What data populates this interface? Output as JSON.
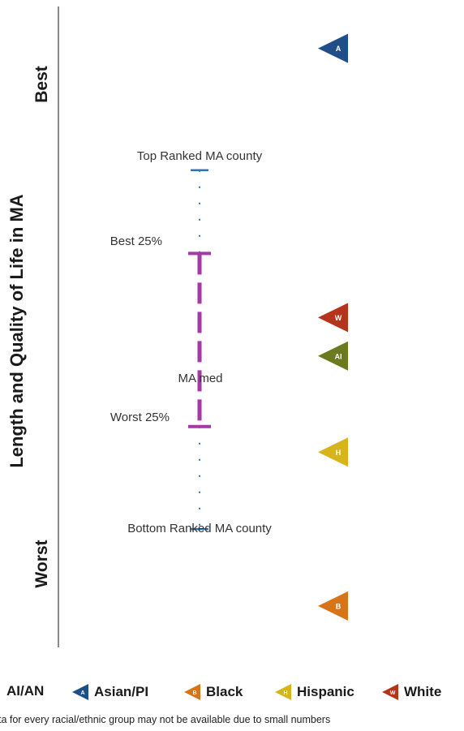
{
  "chart_data": {
    "type": "scatter",
    "title": "",
    "ylabel": "Length and Quality of Life in MA",
    "y_scale_ends": {
      "top": "Best",
      "bottom": "Worst"
    },
    "reference_labels": {
      "top_ranked": "Top Ranked MA county",
      "best_25": "Best 25%",
      "median": "MA med",
      "worst_25": "Worst 25%",
      "bottom_ranked": "Bottom Ranked MA county"
    },
    "reference_levels": {
      "top_ranked": 0.77,
      "best_25": 0.64,
      "worst_25": 0.37,
      "bottom_ranked": 0.21
    },
    "ylim": [
      0,
      1
    ],
    "series": [
      {
        "name": "Asian/PI",
        "letter": "A",
        "value": 0.96,
        "color": "#1f4e89"
      },
      {
        "name": "White",
        "letter": "W",
        "value": 0.54,
        "color": "#b5341c"
      },
      {
        "name": "AI/AN",
        "letter": "AI",
        "value": 0.48,
        "color": "#6b7a1f"
      },
      {
        "name": "Hispanic",
        "letter": "H",
        "value": 0.33,
        "color": "#d6b51c"
      },
      {
        "name": "Black",
        "letter": "B",
        "value": 0.09,
        "color": "#d77418"
      }
    ],
    "range_color": "#a53aa6",
    "extreme_color": "#2e75b6"
  },
  "legend": {
    "items": [
      {
        "label": "AI/AN",
        "color": "#6b7a1f",
        "letter": ""
      },
      {
        "label": "Asian/PI",
        "color": "#1f4e89",
        "letter": "A"
      },
      {
        "label": "Black",
        "color": "#d77418",
        "letter": "B"
      },
      {
        "label": "Hispanic",
        "color": "#d6b51c",
        "letter": "H"
      },
      {
        "label": "White",
        "color": "#b5341c",
        "letter": "W"
      }
    ]
  },
  "footnote": "Data for every racial/ethnic group may not be available due to small numbers"
}
